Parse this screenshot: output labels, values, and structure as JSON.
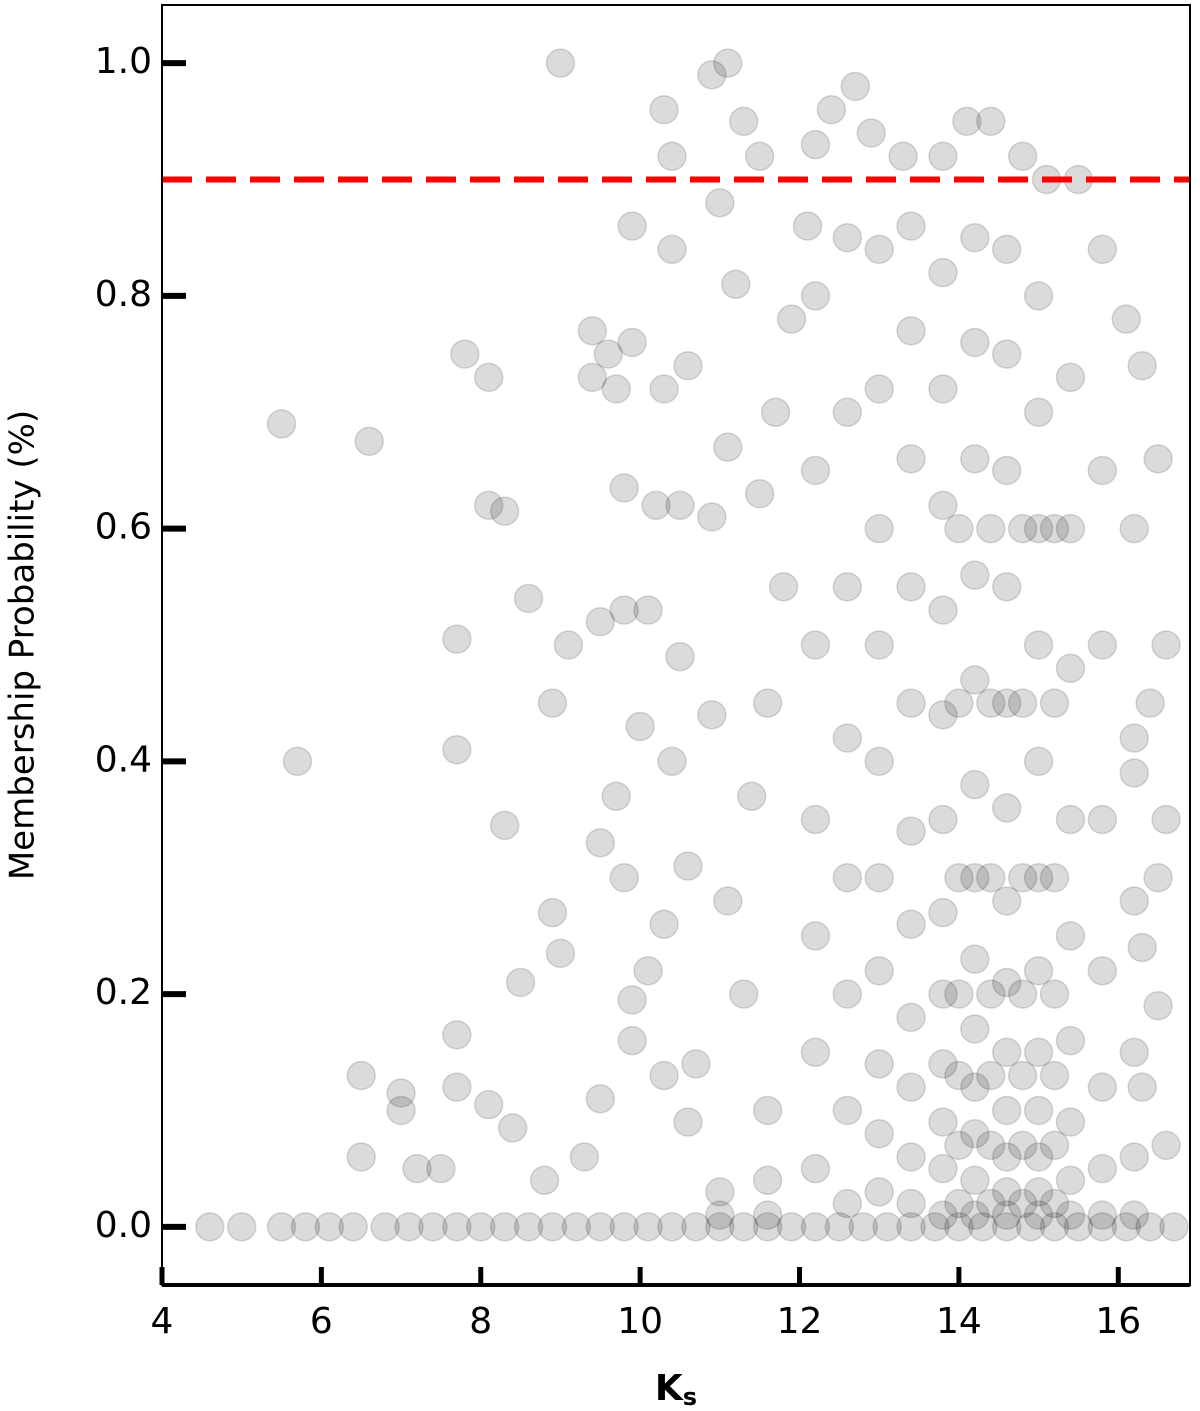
{
  "chart_data": {
    "type": "scatter",
    "ylabel": "Membership Probability (%)",
    "xlabel": {
      "main": "K",
      "sub": "s"
    },
    "xlim": [
      4,
      16.9
    ],
    "ylim": [
      -0.05,
      1.05
    ],
    "xticks": [
      4,
      6,
      8,
      10,
      12,
      14,
      16
    ],
    "yticks": [
      {
        "value": 0.0,
        "label": "0.0"
      },
      0.2,
      0.4,
      0.6,
      0.8,
      {
        "value": 1.0,
        "label": "1.0"
      }
    ],
    "hline": {
      "value": 0.9,
      "color": "#ff0000"
    },
    "series": [
      {
        "color": "#000000",
        "alpha": 0.14,
        "x": [
          9.0,
          11.1,
          10.9,
          5.5,
          6.6,
          5.7,
          7.7,
          7.8,
          8.1,
          8.1,
          8.3,
          7.7,
          8.6,
          8.9,
          9.1,
          9.4,
          9.4,
          9.6,
          9.9,
          9.7,
          9.8,
          10.2,
          10.5,
          10.3,
          10.6,
          10.3,
          10.4,
          10.4,
          9.9,
          11.0,
          11.2,
          11.5,
          11.3,
          11.1,
          10.9,
          10.1,
          9.5,
          9.8,
          10.5,
          10.9,
          10.0,
          10.4,
          9.7,
          9.5,
          8.3,
          8.9,
          9.0,
          8.5,
          9.8,
          10.3,
          10.1,
          10.6,
          9.9,
          7.7,
          6.5,
          7.0,
          7.0,
          6.5,
          7.2,
          7.5,
          8.1,
          8.4,
          9.5,
          9.9,
          10.3,
          10.7,
          7.7,
          8.8,
          9.3,
          10.6,
          11.3,
          11.1,
          11.4,
          11.6,
          11.8,
          11.5,
          11.7,
          11.9,
          12.1,
          12.2,
          12.4,
          12.7,
          12.9,
          13.3,
          13.8,
          14.1,
          14.4,
          14.8,
          15.1,
          15.5,
          15.8,
          16.1,
          16.3,
          16.5,
          16.2,
          16.6,
          16.4,
          16.2,
          16.6,
          16.5,
          16.3,
          16.5,
          16.3,
          16.6,
          12.2,
          12.2,
          12.2,
          12.2,
          12.2,
          12.2,
          12.2,
          12.6,
          12.6,
          12.6,
          12.6,
          12.6,
          12.6,
          12.6,
          12.6,
          13.0,
          13.0,
          13.0,
          13.0,
          13.0,
          13.0,
          13.0,
          13.0,
          13.0,
          13.0,
          13.4,
          13.4,
          13.4,
          13.4,
          13.4,
          13.4,
          13.4,
          13.4,
          13.4,
          13.4,
          13.4,
          13.8,
          13.8,
          13.8,
          13.8,
          13.8,
          13.8,
          13.8,
          13.8,
          13.8,
          13.8,
          13.8,
          13.8,
          14.2,
          14.2,
          14.2,
          14.2,
          14.2,
          14.2,
          14.2,
          14.2,
          14.2,
          14.2,
          14.2,
          14.2,
          14.2,
          14.6,
          14.6,
          14.6,
          14.6,
          14.6,
          14.6,
          14.6,
          14.6,
          14.6,
          14.6,
          14.6,
          14.6,
          14.6,
          15.0,
          15.0,
          15.0,
          15.0,
          15.0,
          15.0,
          15.0,
          15.0,
          15.0,
          15.0,
          15.0,
          15.0,
          15.4,
          15.4,
          15.4,
          15.4,
          15.4,
          15.4,
          15.4,
          15.4,
          15.4,
          15.8,
          15.8,
          15.8,
          15.8,
          15.8,
          15.8,
          15.8,
          16.2,
          16.2,
          16.2,
          16.2,
          16.2,
          11.6,
          11.6,
          11.6,
          11.0,
          11.0,
          14.0,
          14.0,
          14.0,
          14.0,
          14.0,
          14.0,
          14.0,
          14.4,
          14.4,
          14.4,
          14.4,
          14.4,
          14.4,
          14.4,
          14.8,
          14.8,
          14.8,
          14.8,
          14.8,
          14.8,
          14.8,
          15.2,
          15.2,
          15.2,
          15.2,
          15.2,
          15.2,
          15.2,
          4.6,
          5.0,
          5.5,
          5.8,
          6.1,
          6.4,
          6.8,
          7.1,
          7.4,
          7.7,
          8.0,
          8.3,
          8.6,
          8.9,
          9.2,
          9.5,
          9.8,
          10.1,
          10.4,
          10.7,
          11.0,
          11.3,
          11.6,
          11.9,
          12.2,
          12.5,
          12.8,
          13.1,
          13.4,
          13.7,
          14.0,
          14.3,
          14.6,
          14.9,
          15.2,
          15.5,
          15.8,
          16.1,
          16.4,
          16.7
        ],
        "values": [
          1.0,
          1.0,
          0.99,
          0.69,
          0.675,
          0.4,
          0.41,
          0.75,
          0.73,
          0.62,
          0.615,
          0.505,
          0.54,
          0.45,
          0.5,
          0.73,
          0.77,
          0.75,
          0.76,
          0.72,
          0.635,
          0.62,
          0.62,
          0.72,
          0.74,
          0.96,
          0.84,
          0.92,
          0.86,
          0.88,
          0.81,
          0.92,
          0.95,
          0.67,
          0.61,
          0.53,
          0.52,
          0.53,
          0.49,
          0.44,
          0.43,
          0.4,
          0.37,
          0.33,
          0.345,
          0.27,
          0.235,
          0.21,
          0.3,
          0.26,
          0.22,
          0.31,
          0.195,
          0.165,
          0.13,
          0.115,
          0.1,
          0.06,
          0.05,
          0.05,
          0.105,
          0.085,
          0.11,
          0.16,
          0.13,
          0.14,
          0.12,
          0.04,
          0.06,
          0.09,
          0.2,
          0.28,
          0.37,
          0.45,
          0.55,
          0.63,
          0.7,
          0.78,
          0.86,
          0.93,
          0.96,
          0.98,
          0.94,
          0.92,
          0.92,
          0.95,
          0.95,
          0.92,
          0.9,
          0.9,
          0.84,
          0.78,
          0.74,
          0.66,
          0.6,
          0.5,
          0.45,
          0.39,
          0.35,
          0.3,
          0.24,
          0.19,
          0.12,
          0.07,
          0.05,
          0.15,
          0.25,
          0.35,
          0.5,
          0.65,
          0.8,
          0.02,
          0.1,
          0.2,
          0.3,
          0.42,
          0.55,
          0.7,
          0.85,
          0.03,
          0.08,
          0.14,
          0.22,
          0.3,
          0.4,
          0.5,
          0.6,
          0.72,
          0.84,
          0.02,
          0.06,
          0.12,
          0.18,
          0.26,
          0.34,
          0.45,
          0.55,
          0.66,
          0.77,
          0.86,
          0.01,
          0.05,
          0.09,
          0.14,
          0.2,
          0.27,
          0.35,
          0.44,
          0.53,
          0.62,
          0.72,
          0.82,
          0.01,
          0.04,
          0.08,
          0.12,
          0.17,
          0.23,
          0.3,
          0.38,
          0.47,
          0.56,
          0.66,
          0.76,
          0.85,
          0.01,
          0.03,
          0.06,
          0.1,
          0.15,
          0.21,
          0.28,
          0.36,
          0.45,
          0.55,
          0.65,
          0.75,
          0.84,
          0.01,
          0.03,
          0.06,
          0.1,
          0.15,
          0.22,
          0.3,
          0.4,
          0.5,
          0.6,
          0.7,
          0.8,
          0.01,
          0.04,
          0.09,
          0.16,
          0.25,
          0.35,
          0.48,
          0.6,
          0.73,
          0.01,
          0.05,
          0.12,
          0.22,
          0.35,
          0.5,
          0.65,
          0.01,
          0.06,
          0.15,
          0.28,
          0.42,
          0.01,
          0.04,
          0.1,
          0.01,
          0.03,
          0.02,
          0.07,
          0.13,
          0.2,
          0.3,
          0.45,
          0.6,
          0.02,
          0.07,
          0.13,
          0.2,
          0.3,
          0.45,
          0.6,
          0.02,
          0.07,
          0.13,
          0.2,
          0.3,
          0.45,
          0.6,
          0.02,
          0.07,
          0.13,
          0.2,
          0.3,
          0.45,
          0.6,
          0,
          0,
          0,
          0,
          0,
          0,
          0,
          0,
          0,
          0,
          0,
          0,
          0,
          0,
          0,
          0,
          0,
          0,
          0,
          0,
          0,
          0,
          0,
          0,
          0,
          0,
          0,
          0,
          0,
          0,
          0,
          0,
          0,
          0,
          0,
          0,
          0,
          0,
          0,
          0
        ]
      }
    ]
  }
}
